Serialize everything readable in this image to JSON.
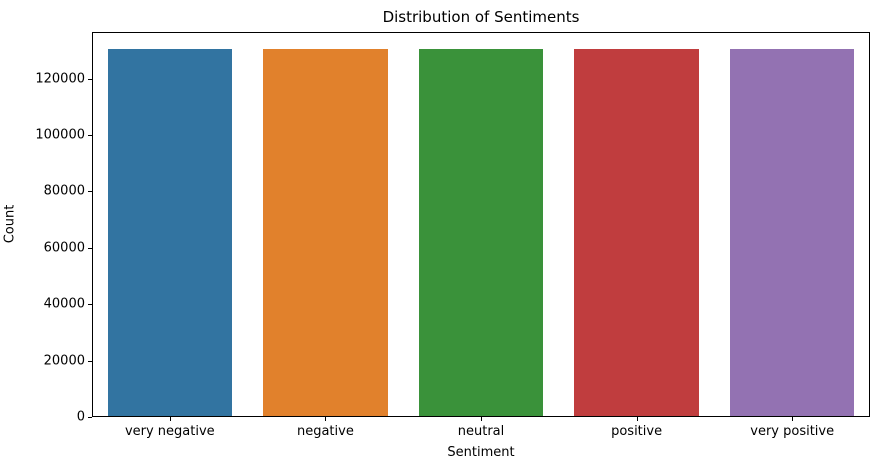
{
  "chart_data": {
    "type": "bar",
    "title": "Distribution of Sentiments",
    "xlabel": "Sentiment",
    "ylabel": "Count",
    "categories": [
      "very negative",
      "negative",
      "neutral",
      "positive",
      "very positive"
    ],
    "values": [
      130000,
      130000,
      130000,
      130000,
      130000
    ],
    "bar_colors": [
      "#3274a1",
      "#e1812c",
      "#3a923a",
      "#c03d3e",
      "#9372b2"
    ],
    "ylim": [
      0,
      136500
    ],
    "yticks": [
      0,
      20000,
      40000,
      60000,
      80000,
      100000,
      120000
    ],
    "bar_width_fraction": 0.8,
    "grid": "off",
    "legend": "none",
    "spine_color": "#000000"
  }
}
